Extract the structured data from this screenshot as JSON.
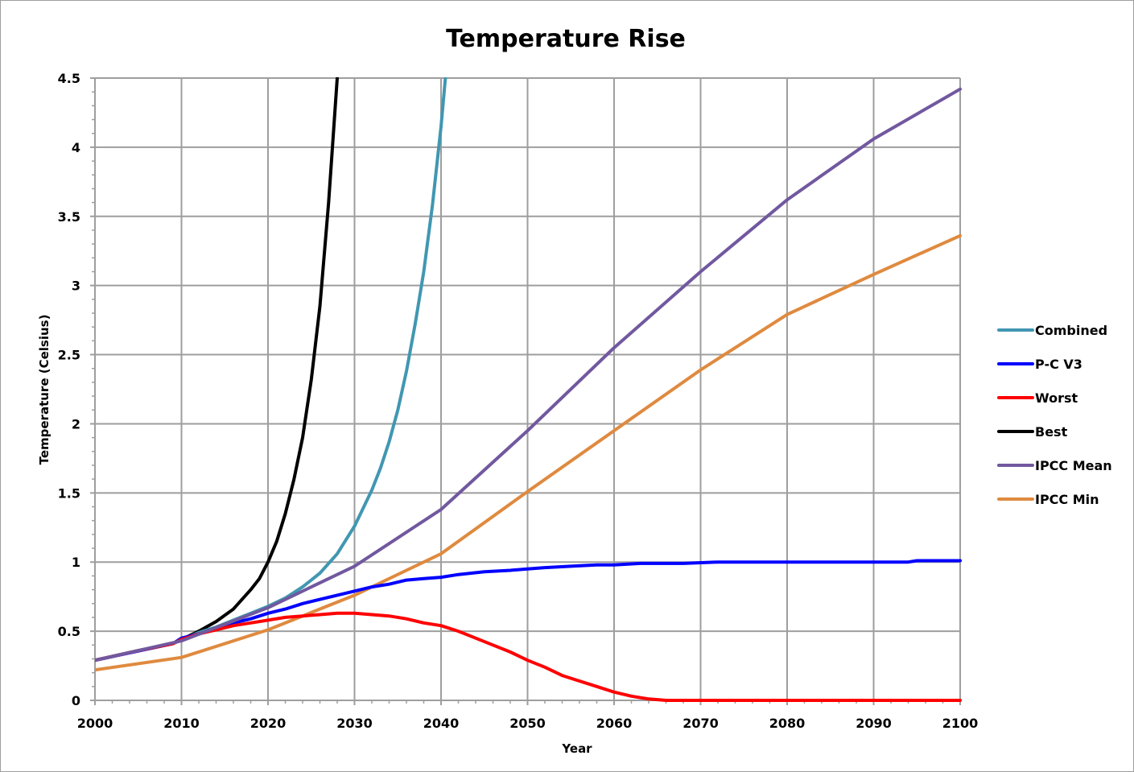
{
  "chart_data": {
    "type": "line",
    "title": "Temperature Rise",
    "xlabel": "Year",
    "ylabel": "Temperature (Celsius)",
    "xlim": [
      2000,
      2100
    ],
    "ylim": [
      0,
      4.5
    ],
    "x_ticks": [
      "2000",
      "2010",
      "2020",
      "2030",
      "2040",
      "2050",
      "2060",
      "2070",
      "2080",
      "2090",
      "2100"
    ],
    "y_ticks": [
      "0",
      "0.5",
      "1",
      "1.5",
      "2",
      "2.5",
      "3",
      "3.5",
      "4",
      "4.5"
    ],
    "grid": true,
    "legend_position": "right",
    "series": [
      {
        "name": "Combined",
        "color": "#4197B1",
        "x": [
          2000,
          2005,
          2009,
          2010,
          2012,
          2014,
          2016,
          2018,
          2020,
          2022,
          2024,
          2026,
          2028,
          2030,
          2032,
          2033,
          2034,
          2035,
          2036,
          2037,
          2038,
          2039,
          2040,
          2040.5
        ],
        "y": [
          0.29,
          0.36,
          0.41,
          0.44,
          0.49,
          0.53,
          0.58,
          0.63,
          0.68,
          0.74,
          0.82,
          0.92,
          1.06,
          1.26,
          1.52,
          1.68,
          1.87,
          2.1,
          2.38,
          2.72,
          3.1,
          3.58,
          4.15,
          4.5
        ]
      },
      {
        "name": "P-C V3",
        "color": "#0000FF",
        "x": [
          2000,
          2003,
          2006,
          2009,
          2010,
          2012,
          2014,
          2016,
          2018,
          2020,
          2022,
          2024,
          2026,
          2028,
          2030,
          2032,
          2034,
          2036,
          2038,
          2040,
          2042,
          2045,
          2048,
          2050,
          2052,
          2055,
          2058,
          2060,
          2063,
          2066,
          2068,
          2072,
          2078,
          2080,
          2090,
          2094,
          2095,
          2100
        ],
        "y": [
          0.29,
          0.33,
          0.37,
          0.41,
          0.45,
          0.48,
          0.52,
          0.56,
          0.59,
          0.63,
          0.66,
          0.7,
          0.73,
          0.76,
          0.79,
          0.82,
          0.84,
          0.87,
          0.88,
          0.89,
          0.91,
          0.93,
          0.94,
          0.95,
          0.96,
          0.97,
          0.98,
          0.98,
          0.99,
          0.99,
          0.99,
          1.0,
          1.0,
          1.0,
          1.0,
          1.0,
          1.01,
          1.01
        ]
      },
      {
        "name": "Worst",
        "color": "#FF0000",
        "x": [
          2000,
          2005,
          2009,
          2010,
          2012,
          2014,
          2016,
          2018,
          2020,
          2022,
          2024,
          2026,
          2028,
          2030,
          2032,
          2034,
          2036,
          2038,
          2040,
          2042,
          2044,
          2046,
          2048,
          2050,
          2052,
          2054,
          2056,
          2058,
          2060,
          2062,
          2064,
          2066,
          2068,
          2070,
          2080,
          2090,
          2100
        ],
        "y": [
          0.29,
          0.36,
          0.41,
          0.44,
          0.48,
          0.51,
          0.54,
          0.56,
          0.58,
          0.6,
          0.61,
          0.62,
          0.63,
          0.63,
          0.62,
          0.61,
          0.59,
          0.56,
          0.54,
          0.5,
          0.45,
          0.4,
          0.35,
          0.29,
          0.24,
          0.18,
          0.14,
          0.1,
          0.06,
          0.03,
          0.01,
          0.0,
          0.0,
          0.0,
          0.0,
          0.0,
          0.0
        ]
      },
      {
        "name": "Best",
        "color": "#000000",
        "x": [
          2000,
          2005,
          2009,
          2010,
          2012,
          2014,
          2016,
          2018,
          2019,
          2020,
          2021,
          2022,
          2023,
          2024,
          2025,
          2026,
          2027,
          2028
        ],
        "y": [
          0.29,
          0.36,
          0.41,
          0.44,
          0.5,
          0.57,
          0.66,
          0.8,
          0.88,
          1.0,
          1.15,
          1.35,
          1.6,
          1.9,
          2.32,
          2.85,
          3.6,
          4.5
        ]
      },
      {
        "name": "IPCC Mean",
        "color": "#71589F",
        "x": [
          2000,
          2010,
          2020,
          2030,
          2040,
          2050,
          2060,
          2070,
          2080,
          2090,
          2100
        ],
        "y": [
          0.29,
          0.43,
          0.67,
          0.97,
          1.38,
          1.95,
          2.55,
          3.1,
          3.62,
          4.06,
          4.42
        ]
      },
      {
        "name": "IPCC Min",
        "color": "#DF8A3F",
        "x": [
          2000,
          2010,
          2020,
          2030,
          2040,
          2050,
          2060,
          2070,
          2080,
          2090,
          2100
        ],
        "y": [
          0.22,
          0.31,
          0.51,
          0.76,
          1.06,
          1.51,
          1.95,
          2.39,
          2.79,
          3.08,
          3.36
        ]
      }
    ]
  }
}
